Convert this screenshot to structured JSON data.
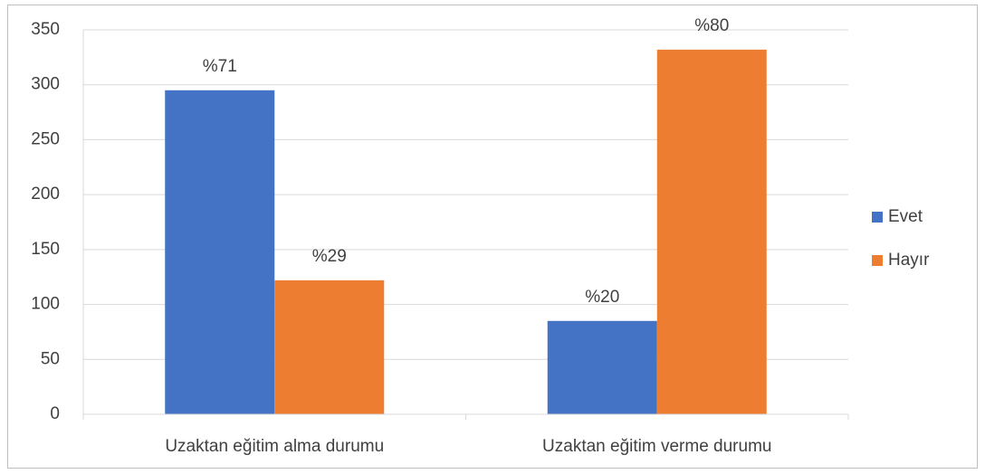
{
  "chart_data": {
    "type": "bar",
    "categories": [
      "Uzaktan eğitim alma durumu",
      "Uzaktan eğitim verme durumu"
    ],
    "series": [
      {
        "name": "Evet",
        "color": "#4472c4",
        "values": [
          295,
          85
        ],
        "value_labels": [
          "%71",
          "%20"
        ]
      },
      {
        "name": "Hayır",
        "color": "#ed7d31",
        "values": [
          122,
          332
        ],
        "value_labels": [
          "%29",
          "%80"
        ]
      }
    ],
    "ylim": [
      0,
      350
    ],
    "yticks": [
      0,
      50,
      100,
      150,
      200,
      250,
      300,
      350
    ],
    "grid": true,
    "legend": "right"
  }
}
